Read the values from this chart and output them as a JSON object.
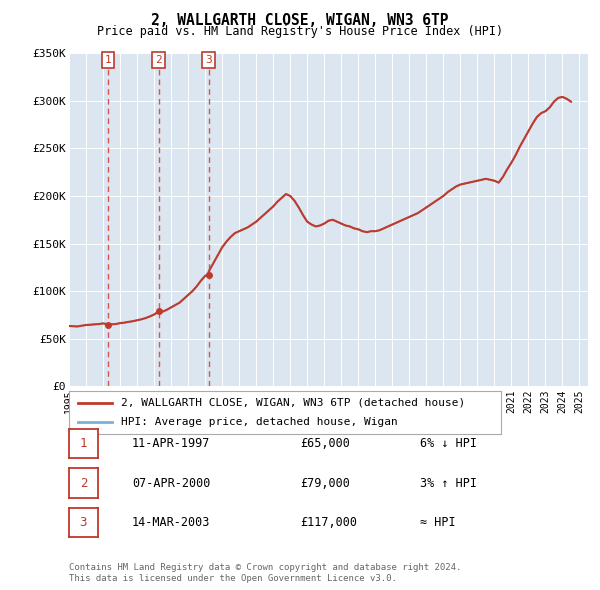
{
  "title": "2, WALLGARTH CLOSE, WIGAN, WN3 6TP",
  "subtitle": "Price paid vs. HM Land Registry's House Price Index (HPI)",
  "background_color": "#dce6f0",
  "sale_dates": [
    1997.278,
    2000.267,
    2003.2
  ],
  "sale_prices": [
    65000,
    79000,
    117000
  ],
  "sale_labels": [
    "1",
    "2",
    "3"
  ],
  "vline_color": "#d9534f",
  "legend_line1_color": "#c0392b",
  "legend_line2_color": "#7db0d4",
  "legend_label1": "2, WALLGARTH CLOSE, WIGAN, WN3 6TP (detached house)",
  "legend_label2": "HPI: Average price, detached house, Wigan",
  "table_rows": [
    {
      "num": "1",
      "date": "11-APR-1997",
      "price": "£65,000",
      "rel": "6% ↓ HPI"
    },
    {
      "num": "2",
      "date": "07-APR-2000",
      "price": "£79,000",
      "rel": "3% ↑ HPI"
    },
    {
      "num": "3",
      "date": "14-MAR-2003",
      "price": "£117,000",
      "rel": "≈ HPI"
    }
  ],
  "footnote1": "Contains HM Land Registry data © Crown copyright and database right 2024.",
  "footnote2": "This data is licensed under the Open Government Licence v3.0.",
  "ylim": [
    0,
    350000
  ],
  "xlim_start": 1995.0,
  "xlim_end": 2025.5,
  "yticks": [
    0,
    50000,
    100000,
    150000,
    200000,
    250000,
    300000,
    350000
  ],
  "ytick_labels": [
    "£0",
    "£50K",
    "£100K",
    "£150K",
    "£200K",
    "£250K",
    "£300K",
    "£350K"
  ],
  "xticks": [
    1995,
    1996,
    1997,
    1998,
    1999,
    2000,
    2001,
    2002,
    2003,
    2004,
    2005,
    2006,
    2007,
    2008,
    2009,
    2010,
    2011,
    2012,
    2013,
    2014,
    2015,
    2016,
    2017,
    2018,
    2019,
    2020,
    2021,
    2022,
    2023,
    2024,
    2025
  ],
  "hpi_data": [
    [
      1995.0,
      63500
    ],
    [
      1995.25,
      63200
    ],
    [
      1995.5,
      63000
    ],
    [
      1995.75,
      63800
    ],
    [
      1996.0,
      64500
    ],
    [
      1996.25,
      64800
    ],
    [
      1996.5,
      65200
    ],
    [
      1996.75,
      65500
    ],
    [
      1997.0,
      66200
    ],
    [
      1997.25,
      65800
    ],
    [
      1997.5,
      65200
    ],
    [
      1997.75,
      65500
    ],
    [
      1998.0,
      66500
    ],
    [
      1998.25,
      67000
    ],
    [
      1998.5,
      67800
    ],
    [
      1998.75,
      68500
    ],
    [
      1999.0,
      69500
    ],
    [
      1999.25,
      70500
    ],
    [
      1999.5,
      71800
    ],
    [
      1999.75,
      73500
    ],
    [
      2000.0,
      75500
    ],
    [
      2000.25,
      77000
    ],
    [
      2000.5,
      78500
    ],
    [
      2000.75,
      80500
    ],
    [
      2001.0,
      83000
    ],
    [
      2001.25,
      85500
    ],
    [
      2001.5,
      88000
    ],
    [
      2001.75,
      92000
    ],
    [
      2002.0,
      96000
    ],
    [
      2002.25,
      100000
    ],
    [
      2002.5,
      105000
    ],
    [
      2002.75,
      111000
    ],
    [
      2003.0,
      116000
    ],
    [
      2003.25,
      122000
    ],
    [
      2003.5,
      130000
    ],
    [
      2003.75,
      138000
    ],
    [
      2004.0,
      146000
    ],
    [
      2004.25,
      152000
    ],
    [
      2004.5,
      157000
    ],
    [
      2004.75,
      161000
    ],
    [
      2005.0,
      163000
    ],
    [
      2005.25,
      165000
    ],
    [
      2005.5,
      167000
    ],
    [
      2005.75,
      170000
    ],
    [
      2006.0,
      173000
    ],
    [
      2006.25,
      177000
    ],
    [
      2006.5,
      181000
    ],
    [
      2006.75,
      185000
    ],
    [
      2007.0,
      189000
    ],
    [
      2007.25,
      194000
    ],
    [
      2007.5,
      198000
    ],
    [
      2007.75,
      202000
    ],
    [
      2008.0,
      200000
    ],
    [
      2008.25,
      195000
    ],
    [
      2008.5,
      188000
    ],
    [
      2008.75,
      180000
    ],
    [
      2009.0,
      173000
    ],
    [
      2009.25,
      170000
    ],
    [
      2009.5,
      168000
    ],
    [
      2009.75,
      169000
    ],
    [
      2010.0,
      171000
    ],
    [
      2010.25,
      174000
    ],
    [
      2010.5,
      175000
    ],
    [
      2010.75,
      173000
    ],
    [
      2011.0,
      171000
    ],
    [
      2011.25,
      169000
    ],
    [
      2011.5,
      168000
    ],
    [
      2011.75,
      166000
    ],
    [
      2012.0,
      165000
    ],
    [
      2012.25,
      163000
    ],
    [
      2012.5,
      162000
    ],
    [
      2012.75,
      163000
    ],
    [
      2013.0,
      163000
    ],
    [
      2013.25,
      164000
    ],
    [
      2013.5,
      166000
    ],
    [
      2013.75,
      168000
    ],
    [
      2014.0,
      170000
    ],
    [
      2014.25,
      172000
    ],
    [
      2014.5,
      174000
    ],
    [
      2014.75,
      176000
    ],
    [
      2015.0,
      178000
    ],
    [
      2015.25,
      180000
    ],
    [
      2015.5,
      182000
    ],
    [
      2015.75,
      185000
    ],
    [
      2016.0,
      188000
    ],
    [
      2016.25,
      191000
    ],
    [
      2016.5,
      194000
    ],
    [
      2016.75,
      197000
    ],
    [
      2017.0,
      200000
    ],
    [
      2017.25,
      204000
    ],
    [
      2017.5,
      207000
    ],
    [
      2017.75,
      210000
    ],
    [
      2018.0,
      212000
    ],
    [
      2018.25,
      213000
    ],
    [
      2018.5,
      214000
    ],
    [
      2018.75,
      215000
    ],
    [
      2019.0,
      216000
    ],
    [
      2019.25,
      217000
    ],
    [
      2019.5,
      218000
    ],
    [
      2019.75,
      217000
    ],
    [
      2020.0,
      216000
    ],
    [
      2020.25,
      214000
    ],
    [
      2020.5,
      220000
    ],
    [
      2020.75,
      228000
    ],
    [
      2021.0,
      235000
    ],
    [
      2021.25,
      243000
    ],
    [
      2021.5,
      252000
    ],
    [
      2021.75,
      260000
    ],
    [
      2022.0,
      268000
    ],
    [
      2022.25,
      276000
    ],
    [
      2022.5,
      283000
    ],
    [
      2022.75,
      287000
    ],
    [
      2023.0,
      289000
    ],
    [
      2023.25,
      293000
    ],
    [
      2023.5,
      299000
    ],
    [
      2023.75,
      303000
    ],
    [
      2024.0,
      304000
    ],
    [
      2024.25,
      302000
    ],
    [
      2024.5,
      299000
    ]
  ],
  "pp_data": [
    [
      1995.0,
      63500
    ],
    [
      1995.25,
      63200
    ],
    [
      1995.5,
      63000
    ],
    [
      1995.75,
      63800
    ],
    [
      1996.0,
      64500
    ],
    [
      1996.25,
      64800
    ],
    [
      1996.5,
      65200
    ],
    [
      1996.75,
      65500
    ],
    [
      1997.0,
      66200
    ],
    [
      1997.278,
      65000
    ],
    [
      1997.5,
      65200
    ],
    [
      1997.75,
      65500
    ],
    [
      1998.0,
      66500
    ],
    [
      1998.25,
      67000
    ],
    [
      1998.5,
      67800
    ],
    [
      1998.75,
      68500
    ],
    [
      1999.0,
      69500
    ],
    [
      1999.25,
      70500
    ],
    [
      1999.5,
      71800
    ],
    [
      1999.75,
      73500
    ],
    [
      2000.0,
      75500
    ],
    [
      2000.267,
      79000
    ],
    [
      2000.5,
      78500
    ],
    [
      2000.75,
      80500
    ],
    [
      2001.0,
      83000
    ],
    [
      2001.25,
      85500
    ],
    [
      2001.5,
      88000
    ],
    [
      2001.75,
      92000
    ],
    [
      2002.0,
      96000
    ],
    [
      2002.25,
      100000
    ],
    [
      2002.5,
      105000
    ],
    [
      2002.75,
      111000
    ],
    [
      2003.0,
      116000
    ],
    [
      2003.2,
      117000
    ],
    [
      2003.25,
      122000
    ],
    [
      2003.5,
      130000
    ],
    [
      2003.75,
      138000
    ],
    [
      2004.0,
      146000
    ],
    [
      2004.25,
      152000
    ],
    [
      2004.5,
      157000
    ],
    [
      2004.75,
      161000
    ],
    [
      2005.0,
      163000
    ],
    [
      2005.25,
      165000
    ],
    [
      2005.5,
      167000
    ],
    [
      2005.75,
      170000
    ],
    [
      2006.0,
      173000
    ],
    [
      2006.25,
      177000
    ],
    [
      2006.5,
      181000
    ],
    [
      2006.75,
      185000
    ],
    [
      2007.0,
      189000
    ],
    [
      2007.25,
      194000
    ],
    [
      2007.5,
      198000
    ],
    [
      2007.75,
      202000
    ],
    [
      2008.0,
      200000
    ],
    [
      2008.25,
      195000
    ],
    [
      2008.5,
      188000
    ],
    [
      2008.75,
      180000
    ],
    [
      2009.0,
      173000
    ],
    [
      2009.25,
      170000
    ],
    [
      2009.5,
      168000
    ],
    [
      2009.75,
      169000
    ],
    [
      2010.0,
      171000
    ],
    [
      2010.25,
      174000
    ],
    [
      2010.5,
      175000
    ],
    [
      2010.75,
      173000
    ],
    [
      2011.0,
      171000
    ],
    [
      2011.25,
      169000
    ],
    [
      2011.5,
      168000
    ],
    [
      2011.75,
      166000
    ],
    [
      2012.0,
      165000
    ],
    [
      2012.25,
      163000
    ],
    [
      2012.5,
      162000
    ],
    [
      2012.75,
      163000
    ],
    [
      2013.0,
      163000
    ],
    [
      2013.25,
      164000
    ],
    [
      2013.5,
      166000
    ],
    [
      2013.75,
      168000
    ],
    [
      2014.0,
      170000
    ],
    [
      2014.25,
      172000
    ],
    [
      2014.5,
      174000
    ],
    [
      2014.75,
      176000
    ],
    [
      2015.0,
      178000
    ],
    [
      2015.25,
      180000
    ],
    [
      2015.5,
      182000
    ],
    [
      2015.75,
      185000
    ],
    [
      2016.0,
      188000
    ],
    [
      2016.25,
      191000
    ],
    [
      2016.5,
      194000
    ],
    [
      2016.75,
      197000
    ],
    [
      2017.0,
      200000
    ],
    [
      2017.25,
      204000
    ],
    [
      2017.5,
      207000
    ],
    [
      2017.75,
      210000
    ],
    [
      2018.0,
      212000
    ],
    [
      2018.25,
      213000
    ],
    [
      2018.5,
      214000
    ],
    [
      2018.75,
      215000
    ],
    [
      2019.0,
      216000
    ],
    [
      2019.25,
      217000
    ],
    [
      2019.5,
      218000
    ],
    [
      2019.75,
      217000
    ],
    [
      2020.0,
      216000
    ],
    [
      2020.25,
      214000
    ],
    [
      2020.5,
      220000
    ],
    [
      2020.75,
      228000
    ],
    [
      2021.0,
      235000
    ],
    [
      2021.25,
      243000
    ],
    [
      2021.5,
      252000
    ],
    [
      2021.75,
      260000
    ],
    [
      2022.0,
      268000
    ],
    [
      2022.25,
      276000
    ],
    [
      2022.5,
      283000
    ],
    [
      2022.75,
      287000
    ],
    [
      2023.0,
      289000
    ],
    [
      2023.25,
      293000
    ],
    [
      2023.5,
      299000
    ],
    [
      2023.75,
      303000
    ],
    [
      2024.0,
      304000
    ],
    [
      2024.25,
      302000
    ],
    [
      2024.5,
      299000
    ]
  ]
}
